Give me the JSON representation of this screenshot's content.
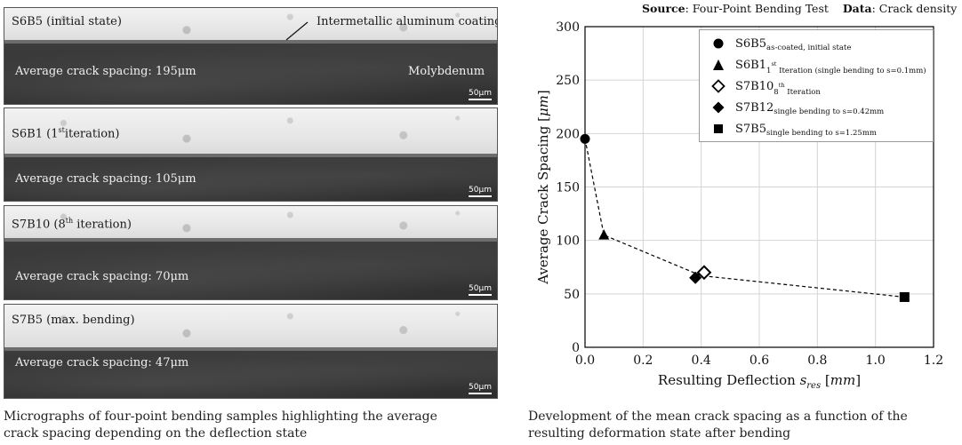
{
  "micrographs": {
    "panels": [
      {
        "id": "S6B5",
        "label": "S6B5 (initial state)",
        "spacing_text": "Average crack spacing: 195μm",
        "annotation_coating": "Intermetallic aluminum coating",
        "annotation_substrate": "Molybdenum",
        "scalebar": "50μm"
      },
      {
        "id": "S6B1",
        "label_prefix": "S6B1 (1",
        "label_sup": "st",
        "label_suffix": "iteration)",
        "spacing_text": "Average crack spacing: 105μm",
        "scalebar": "50μm"
      },
      {
        "id": "S7B10",
        "label_prefix": "S7B10 (8",
        "label_sup": "th",
        "label_suffix": " iteration)",
        "spacing_text": "Average crack spacing: 70μm",
        "scalebar": "50μm"
      },
      {
        "id": "S7B5",
        "label": "S7B5 (max. bending)",
        "spacing_text": "Average crack spacing: 47μm",
        "scalebar": "50μm"
      }
    ],
    "caption_line1": "Micrographs of four-point bending samples highlighting the average",
    "caption_line2": "crack spacing depending on the deflection state"
  },
  "chart_header": {
    "source_label": "Source",
    "source_value": ": Four-Point Bending Test",
    "data_label": "Data",
    "data_value": ": Crack density"
  },
  "chart_caption": {
    "line1": "Development of the mean crack spacing as a function of the",
    "line2": "resulting deformation state after bending"
  },
  "chart_data": {
    "type": "scatter",
    "xlabel_main": "Resulting Deflection ",
    "xlabel_var": "s",
    "xlabel_sub": "res",
    "xlabel_unit_open": " [",
    "xlabel_unit": "mm",
    "xlabel_unit_close": "]",
    "ylabel_main": "Average Crack Spacing [",
    "ylabel_unit": "μm",
    "ylabel_close": "]",
    "xlim": [
      0,
      1.2
    ],
    "ylim": [
      0,
      300
    ],
    "x_ticks": [
      "0.0",
      "0.2",
      "0.4",
      "0.6",
      "0.8",
      "1.0",
      "1.2"
    ],
    "y_ticks": [
      "0",
      "50",
      "100",
      "150",
      "200",
      "250",
      "300"
    ],
    "grid": true,
    "legend_position": "top-right",
    "trend_line": {
      "style": "dashed",
      "points": [
        [
          0.0,
          195
        ],
        [
          0.065,
          105
        ],
        [
          0.4,
          67
        ],
        [
          1.1,
          47
        ]
      ]
    },
    "series": [
      {
        "name": "S6B5",
        "subscript": "as-coated, initial state",
        "marker": "circle-filled",
        "x": 0.0,
        "y": 195
      },
      {
        "name": "S6B1",
        "subscript_pre": "1",
        "subscript_sup": "st",
        "subscript": " Iteration (single bending to s=0.1mm)",
        "marker": "triangle-filled",
        "x": 0.065,
        "y": 105
      },
      {
        "name": "S7B10",
        "subscript_pre": "8",
        "subscript_sup": "th",
        "subscript": " Iteration",
        "marker": "diamond-open",
        "x": 0.41,
        "y": 70
      },
      {
        "name": "S7B12",
        "subscript": "single bending to s=0.42mm",
        "marker": "diamond-filled",
        "x": 0.38,
        "y": 65
      },
      {
        "name": "S7B5",
        "subscript": "single bending to s=1.25mm",
        "marker": "square-filled",
        "x": 1.1,
        "y": 47
      }
    ]
  }
}
